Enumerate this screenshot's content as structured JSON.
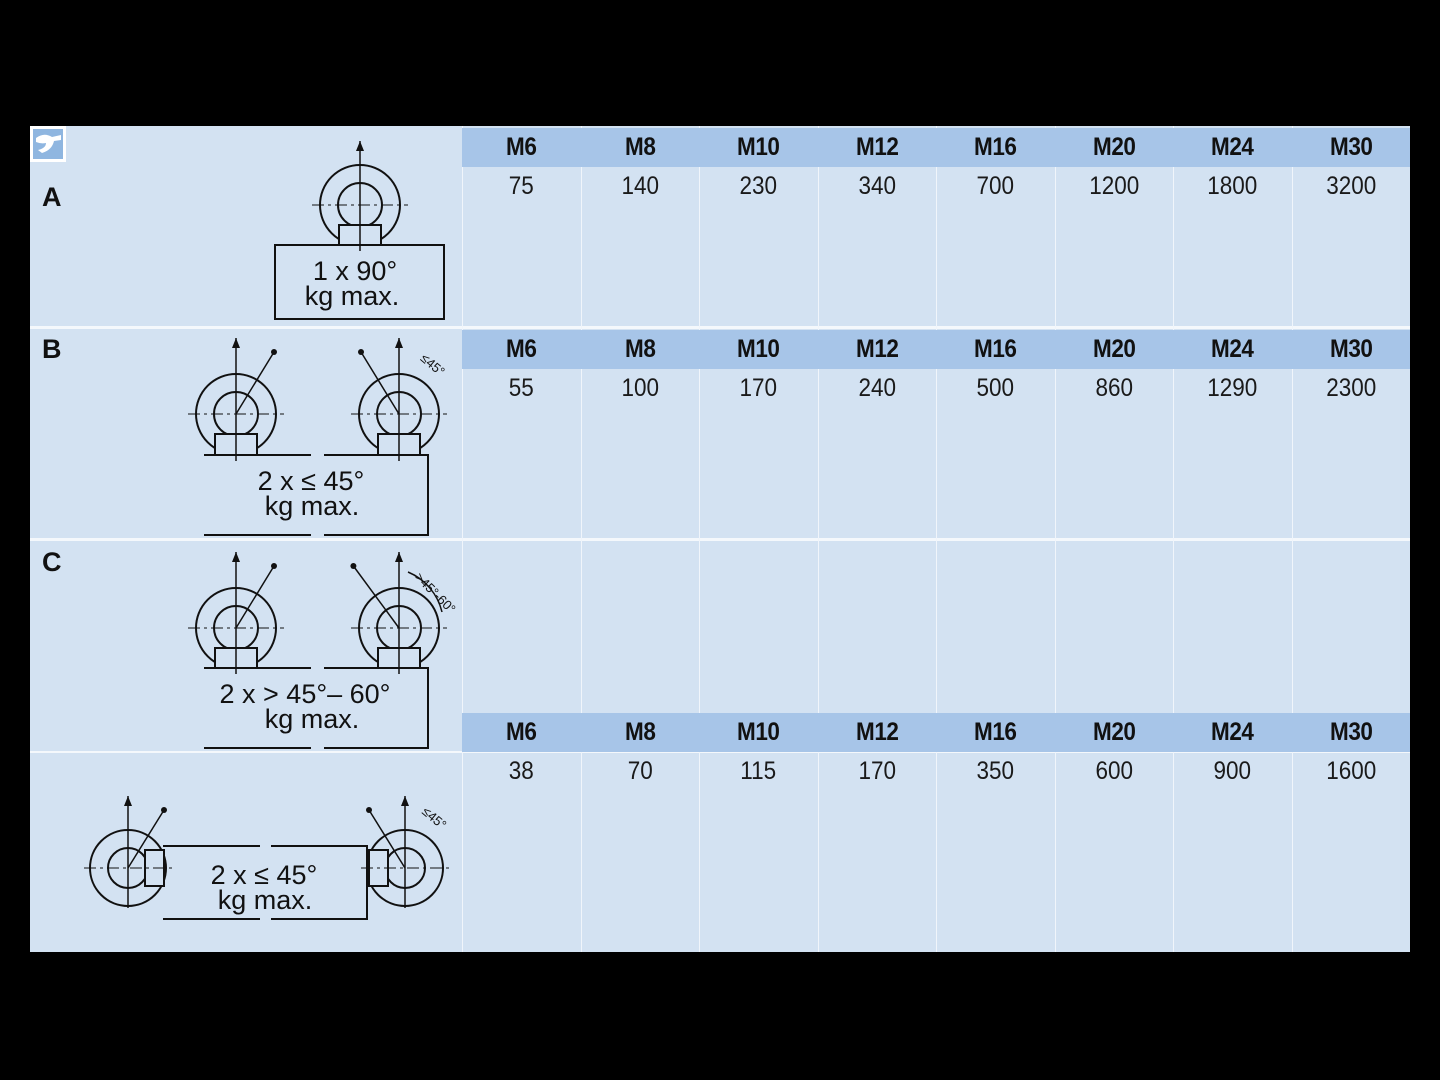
{
  "colors": {
    "background": "#d3e2f2",
    "header": "#a7c5e8"
  },
  "logo_icon": "wrench-icon",
  "rows": [
    {
      "label": "A",
      "diagram": {
        "line1": "1 x 90°",
        "line2": "kg max."
      },
      "sizes": [
        "M6",
        "M8",
        "M10",
        "M12",
        "M16",
        "M20",
        "M24",
        "M30"
      ],
      "values": [
        "75",
        "140",
        "230",
        "340",
        "700",
        "1200",
        "1800",
        "3200"
      ]
    },
    {
      "label": "B",
      "diagram": {
        "line1": "2 x ≤ 45°",
        "line2": "kg max.",
        "angle": "≤45°"
      },
      "sizes": [
        "M6",
        "M8",
        "M10",
        "M12",
        "M16",
        "M20",
        "M24",
        "M30"
      ],
      "values": [
        "55",
        "100",
        "170",
        "240",
        "500",
        "860",
        "1290",
        "2300"
      ]
    },
    {
      "label": "C",
      "diagram": {
        "line1": "2 x > 45°– 60°",
        "line2": "kg max.",
        "angle": ">45°-60°"
      }
    },
    {
      "label": "",
      "diagram": {
        "line1": "2 x ≤ 45°",
        "line2": "kg max.",
        "angle": "≤45°"
      },
      "sizes": [
        "M6",
        "M8",
        "M10",
        "M12",
        "M16",
        "M20",
        "M24",
        "M30"
      ],
      "values": [
        "38",
        "70",
        "115",
        "170",
        "350",
        "600",
        "900",
        "1600"
      ]
    }
  ]
}
